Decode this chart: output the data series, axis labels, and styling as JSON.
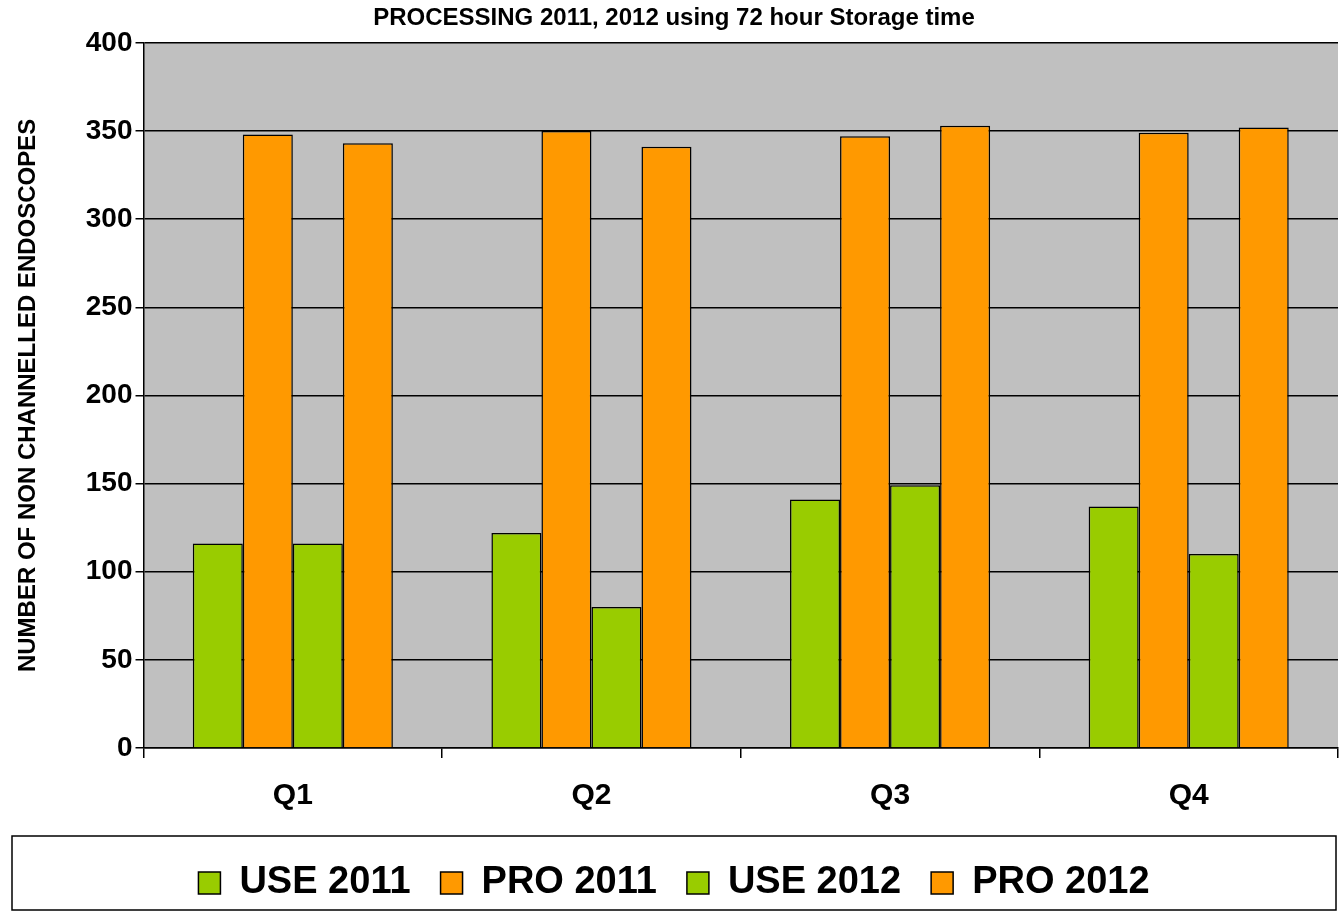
{
  "chart_data": {
    "type": "bar",
    "title": "PROCESSING 2011, 2012 using 72 hour Storage time",
    "ylabel": "NUMBER OF NON CHANNELLED ENDOSCOPES",
    "categories": [
      "Q1",
      "Q2",
      "Q3",
      "Q4"
    ],
    "series": [
      {
        "name": "USE 2011",
        "color": "#99cc00",
        "values": [
          116,
          122,
          141,
          137
        ]
      },
      {
        "name": "PRO 2011",
        "color": "#ff9900",
        "values": [
          348,
          350,
          347,
          349
        ]
      },
      {
        "name": "USE 2012",
        "color": "#99cc00",
        "values": [
          116,
          80,
          149,
          110
        ]
      },
      {
        "name": "PRO 2012",
        "color": "#ff9900",
        "values": [
          343,
          341,
          353,
          352
        ]
      }
    ],
    "ylim": [
      0,
      400
    ],
    "yticks": [
      0,
      50,
      100,
      150,
      200,
      250,
      300,
      350,
      400
    ],
    "grid": "y",
    "legend": "bottom"
  }
}
